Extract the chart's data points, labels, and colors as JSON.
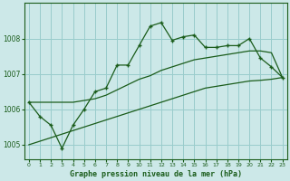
{
  "title": "Graphe pression niveau de la mer (hPa)",
  "background_color": "#cce8e8",
  "grid_color": "#99cccc",
  "line_color": "#1a5c1a",
  "x_ticks": [
    0,
    1,
    2,
    3,
    4,
    5,
    6,
    7,
    8,
    9,
    10,
    11,
    12,
    13,
    14,
    15,
    16,
    17,
    18,
    19,
    20,
    21,
    22,
    23
  ],
  "y_ticks": [
    1005,
    1006,
    1007,
    1008
  ],
  "ylim": [
    1004.6,
    1009.0
  ],
  "xlim": [
    -0.4,
    23.4
  ],
  "main_line": [
    1006.2,
    1005.8,
    1005.55,
    1004.9,
    1005.55,
    1006.0,
    1006.5,
    1006.6,
    1007.25,
    1007.25,
    1007.8,
    1008.35,
    1008.45,
    1007.95,
    1008.05,
    1008.1,
    1007.75,
    1007.75,
    1007.8,
    1007.8,
    1008.0,
    1007.45,
    1007.2,
    1006.9
  ],
  "lower_line": [
    1005.0,
    1005.1,
    1005.2,
    1005.3,
    1005.4,
    1005.5,
    1005.6,
    1005.7,
    1005.8,
    1005.9,
    1006.0,
    1006.1,
    1006.2,
    1006.3,
    1006.4,
    1006.5,
    1006.6,
    1006.65,
    1006.7,
    1006.75,
    1006.8,
    1006.82,
    1006.85,
    1006.9
  ],
  "upper_line": [
    1006.2,
    1006.2,
    1006.2,
    1006.2,
    1006.2,
    1006.25,
    1006.3,
    1006.4,
    1006.55,
    1006.7,
    1006.85,
    1006.95,
    1007.1,
    1007.2,
    1007.3,
    1007.4,
    1007.45,
    1007.5,
    1007.55,
    1007.6,
    1007.65,
    1007.65,
    1007.6,
    1006.9
  ]
}
